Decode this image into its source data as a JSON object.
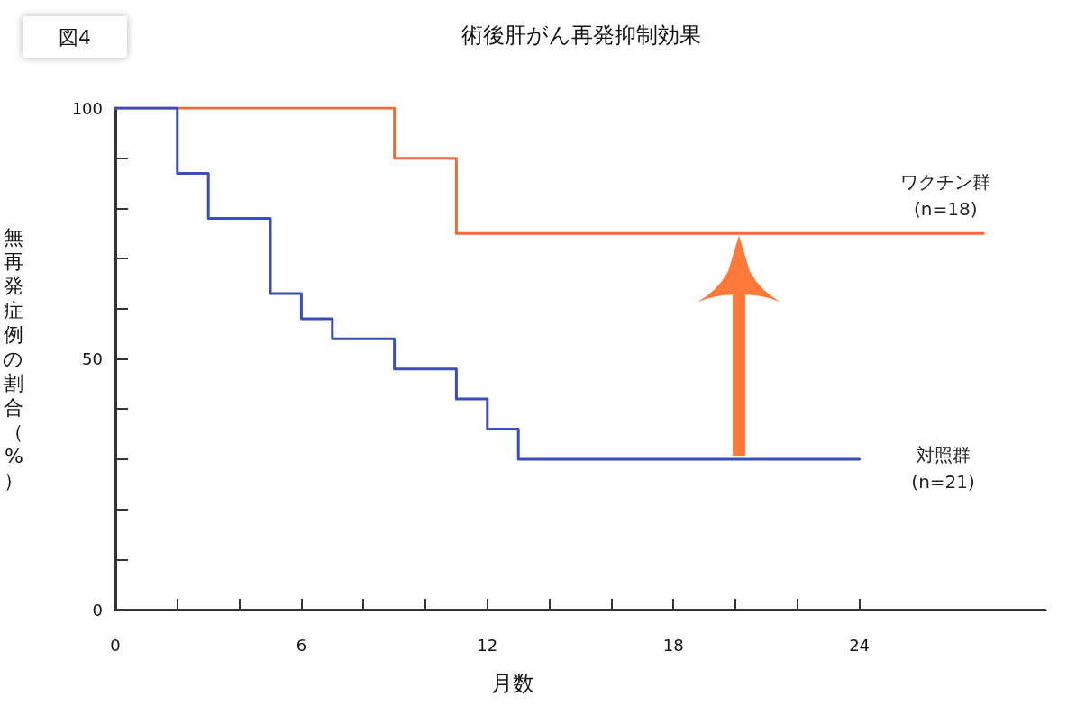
{
  "chart_data": {
    "type": "step",
    "title": "術後肝がん再発抑制効果",
    "xlabel": "月数",
    "ylabel": "無再発症例の割合（%）",
    "annotations": [
      "図4"
    ],
    "series": [
      {
        "name": "ワクチン群\n(n=18)",
        "color": "#f26a3c",
        "x": [
          0,
          9,
          11,
          28
        ],
        "values": [
          100,
          90,
          75,
          75
        ]
      },
      {
        "name": "対照群\n(n=21)",
        "color": "#3a4db8",
        "x": [
          0,
          2,
          3,
          5,
          6,
          7,
          9,
          11,
          12,
          13,
          24
        ],
        "values": [
          100,
          87,
          78,
          63,
          58,
          54,
          48,
          42,
          36,
          30,
          30
        ]
      }
    ],
    "xlim": [
      0,
      30
    ],
    "xticks": [
      0,
      {
        "value": 2,
        "label": null
      },
      {
        "value": 4,
        "label": null
      },
      6,
      {
        "value": 8,
        "label": null
      },
      {
        "value": 10,
        "label": null
      },
      12,
      {
        "value": 14,
        "label": null
      },
      {
        "value": 16,
        "label": null
      },
      18,
      {
        "value": 20,
        "label": null
      },
      {
        "value": 22,
        "label": null
      },
      24
    ],
    "ylim": [
      0,
      100
    ],
    "yticks": [
      0,
      {
        "value": 10,
        "label": null
      },
      {
        "value": 20,
        "label": null
      },
      {
        "value": 30,
        "label": null
      },
      {
        "value": 40,
        "label": null
      },
      50,
      {
        "value": 60,
        "label": null
      },
      {
        "value": 70,
        "label": null
      },
      {
        "value": 80,
        "label": null
      },
      {
        "value": 90,
        "label": null
      },
      100
    ],
    "grid": false,
    "legend": false,
    "marker": "none",
    "line_style": "solid"
  }
}
